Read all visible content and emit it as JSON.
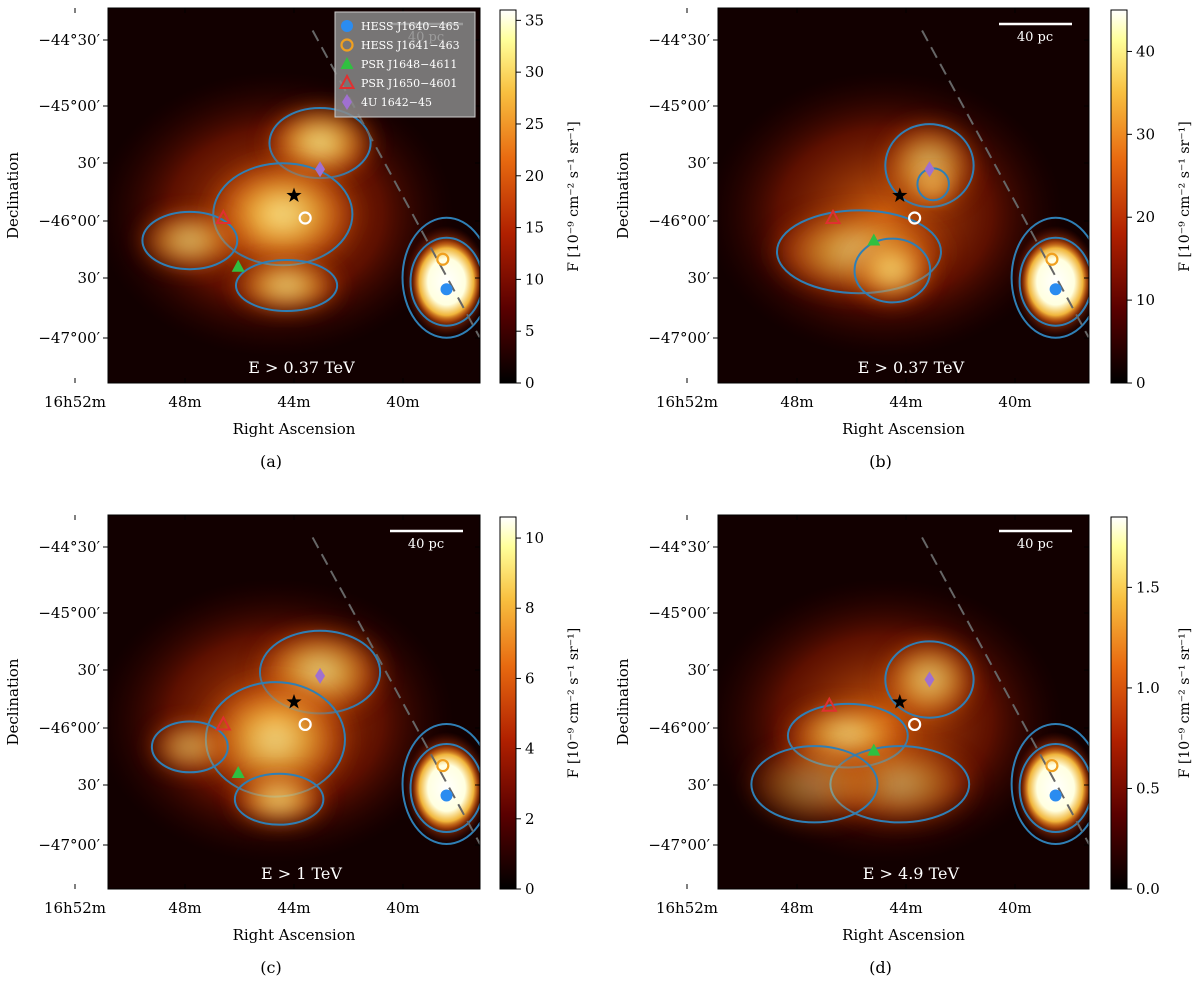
{
  "figure": {
    "xlabel": "Right Ascension",
    "ylabel": "Declination",
    "scale_label": "40 pc",
    "cbar_label": "F [10⁻⁹ cm⁻² s⁻¹ sr⁻¹]",
    "dec_ticks": [
      "−44°30′",
      "−45°00′",
      "30′",
      "−46°00′",
      "30′",
      "−47°00′"
    ],
    "ra_ticks": [
      "16h52m",
      "48m",
      "44m",
      "40m"
    ],
    "legend": [
      {
        "label": "HESS J1640−465",
        "marker": "filled-circle",
        "color": "#2b8cf0"
      },
      {
        "label": "HESS J1641−463",
        "marker": "open-circle",
        "color": "#f0a020"
      },
      {
        "label": "PSR J1648−4611",
        "marker": "filled-triangle",
        "color": "#30c040"
      },
      {
        "label": "PSR J1650−4601",
        "marker": "open-triangle",
        "color": "#e03030"
      },
      {
        "label": "4U 1642−45",
        "marker": "diamond",
        "color": "#a070d0"
      }
    ],
    "colors": {
      "contour": "#2f7fb5",
      "colormap": [
        "#000000",
        "#5a0000",
        "#b02000",
        "#e86a10",
        "#f8c040",
        "#ffff9a",
        "#ffffff"
      ]
    }
  },
  "chart_data": [
    {
      "type": "heatmap",
      "panel_label": "(a)",
      "energy_label": "E > 0.37 TeV",
      "cbar_ticks": [
        "0",
        "5",
        "10",
        "15",
        "20",
        "25",
        "30",
        "35"
      ],
      "cbar_range": [
        0,
        36
      ],
      "ra_range_h": [
        "16h55m",
        "16h38m"
      ],
      "dec_range_deg": [
        -47.25,
        -44.35
      ],
      "legend_shown": true,
      "grid": false
    },
    {
      "type": "heatmap",
      "panel_label": "(b)",
      "energy_label": "E > 0.37 TeV",
      "cbar_ticks": [
        "0",
        "10",
        "20",
        "30",
        "40"
      ],
      "cbar_range": [
        0,
        45
      ],
      "ra_range_h": [
        "16h55m",
        "16h38m"
      ],
      "dec_range_deg": [
        -47.25,
        -44.35
      ],
      "legend_shown": false,
      "grid": false
    },
    {
      "type": "heatmap",
      "panel_label": "(c)",
      "energy_label": "E > 1 TeV",
      "cbar_ticks": [
        "0",
        "2",
        "4",
        "6",
        "8",
        "10"
      ],
      "cbar_range": [
        0,
        10.6
      ],
      "ra_range_h": [
        "16h55m",
        "16h38m"
      ],
      "dec_range_deg": [
        -47.25,
        -44.35
      ],
      "legend_shown": false,
      "grid": false
    },
    {
      "type": "heatmap",
      "panel_label": "(d)",
      "energy_label": "E > 4.9 TeV",
      "cbar_ticks": [
        "0.0",
        "0.5",
        "1.0",
        "1.5"
      ],
      "cbar_range": [
        0,
        1.85
      ],
      "ra_range_h": [
        "16h55m",
        "16h38m"
      ],
      "dec_range_deg": [
        -47.25,
        -44.35
      ],
      "legend_shown": false,
      "grid": false
    }
  ]
}
